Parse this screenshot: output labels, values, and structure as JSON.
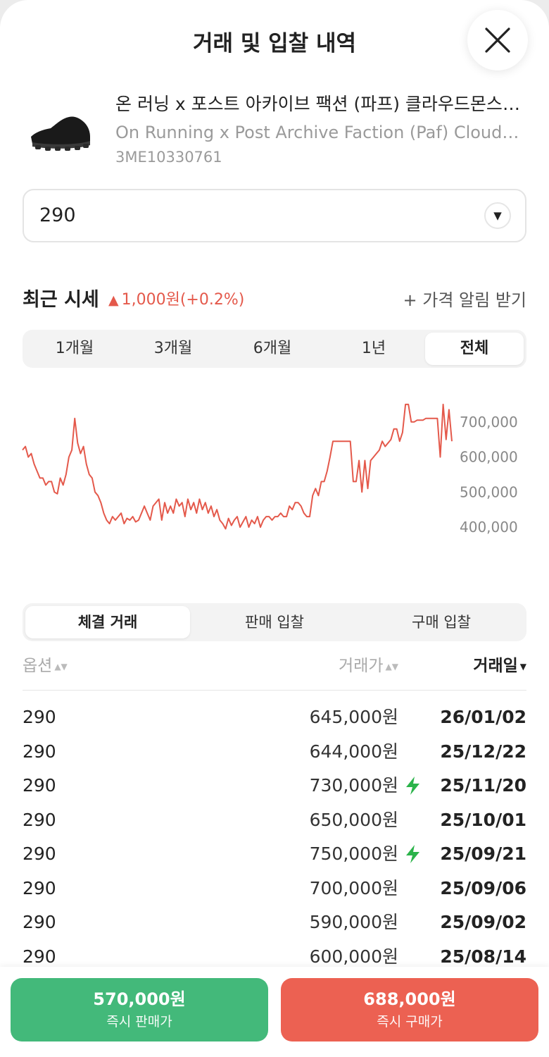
{
  "header": {
    "title": "거래 및 입찰 내역"
  },
  "product": {
    "name_ko": "온 러닝 x 포스트 아카이브 팩션 (파프) 클라우드몬스터 ...",
    "name_en": "On Running x Post Archive Faction (Paf) Cloudmonster ...",
    "code": "3ME10330761",
    "image_icon": "black-running-shoe"
  },
  "size_select": {
    "value": "290",
    "icon": "chevron-down-icon"
  },
  "market": {
    "title": "최근 시세",
    "change_arrow": "▲",
    "change": "1,000원(+0.2%)",
    "alert_link": "+ 가격 알림 받기",
    "change_color": "#e4594b"
  },
  "period_tabs": [
    {
      "label": "1개월",
      "active": false
    },
    {
      "label": "3개월",
      "active": false
    },
    {
      "label": "6개월",
      "active": false
    },
    {
      "label": "1년",
      "active": false
    },
    {
      "label": "전체",
      "active": true
    }
  ],
  "chart_data": {
    "type": "line",
    "title": "",
    "xlabel": "",
    "ylabel": "",
    "color": "#e4594b",
    "y_ticks": [
      700000,
      600000,
      500000,
      400000
    ],
    "y_tick_labels": [
      "700,000",
      "600,000",
      "500,000",
      "400,000"
    ],
    "ylim": [
      380000,
      770000
    ],
    "grid": false,
    "values": [
      620000,
      630000,
      600000,
      610000,
      580000,
      560000,
      540000,
      540000,
      520000,
      530000,
      530000,
      500000,
      495000,
      540000,
      520000,
      550000,
      600000,
      620000,
      710000,
      640000,
      610000,
      630000,
      580000,
      550000,
      540000,
      500000,
      490000,
      470000,
      440000,
      420000,
      410000,
      430000,
      420000,
      430000,
      440000,
      410000,
      425000,
      420000,
      430000,
      415000,
      420000,
      440000,
      460000,
      440000,
      420000,
      460000,
      470000,
      480000,
      420000,
      470000,
      440000,
      460000,
      440000,
      480000,
      460000,
      470000,
      430000,
      480000,
      450000,
      470000,
      440000,
      480000,
      450000,
      470000,
      440000,
      460000,
      430000,
      450000,
      420000,
      410000,
      395000,
      425000,
      405000,
      420000,
      430000,
      400000,
      415000,
      430000,
      400000,
      420000,
      410000,
      430000,
      400000,
      420000,
      430000,
      430000,
      420000,
      430000,
      430000,
      440000,
      430000,
      430000,
      460000,
      450000,
      470000,
      470000,
      460000,
      440000,
      430000,
      430000,
      490000,
      510000,
      490000,
      530000,
      530000,
      560000,
      600000,
      645000,
      645000,
      645000,
      645000,
      645000,
      645000,
      645000,
      530000,
      530000,
      590000,
      500000,
      590000,
      510000,
      590000,
      600000,
      610000,
      620000,
      645000,
      630000,
      640000,
      650000,
      680000,
      680000,
      645000,
      670000,
      750000,
      750000,
      700000,
      700000,
      705000,
      705000,
      705000,
      710000,
      710000,
      710000,
      710000,
      710000,
      600000,
      750000,
      650000,
      735000,
      645000
    ]
  },
  "trade_tabs": [
    {
      "label": "체결 거래",
      "active": true
    },
    {
      "label": "판매 입찰",
      "active": false
    },
    {
      "label": "구매 입찰",
      "active": false
    }
  ],
  "table": {
    "headers": {
      "option": "옵션",
      "price": "거래가",
      "date": "거래일"
    },
    "rows": [
      {
        "option": "290",
        "price": "645,000원",
        "date": "26/01/02",
        "quick": false
      },
      {
        "option": "290",
        "price": "644,000원",
        "date": "25/12/22",
        "quick": false
      },
      {
        "option": "290",
        "price": "730,000원",
        "date": "25/11/20",
        "quick": true
      },
      {
        "option": "290",
        "price": "650,000원",
        "date": "25/10/01",
        "quick": false
      },
      {
        "option": "290",
        "price": "750,000원",
        "date": "25/09/21",
        "quick": true
      },
      {
        "option": "290",
        "price": "700,000원",
        "date": "25/09/06",
        "quick": false
      },
      {
        "option": "290",
        "price": "590,000원",
        "date": "25/09/02",
        "quick": false
      },
      {
        "option": "290",
        "price": "600,000원",
        "date": "25/08/14",
        "quick": false
      }
    ],
    "quick_icon": "lightning-icon",
    "quick_color": "#2bb34a"
  },
  "footer": {
    "sell": {
      "price": "570,000원",
      "label": "즉시 판매가",
      "color": "#43b97a"
    },
    "buy": {
      "price": "688,000원",
      "label": "즉시 구매가",
      "color": "#ec6152"
    }
  }
}
